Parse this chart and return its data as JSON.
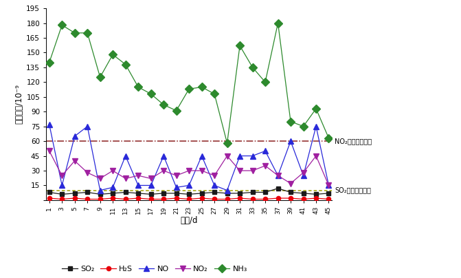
{
  "days": [
    1,
    3,
    5,
    7,
    9,
    11,
    13,
    15,
    17,
    19,
    21,
    23,
    25,
    27,
    29,
    31,
    33,
    35,
    37,
    39,
    41,
    43,
    45
  ],
  "SO2": [
    8,
    6,
    7,
    8,
    6,
    7,
    8,
    7,
    6,
    7,
    7,
    6,
    7,
    8,
    7,
    7,
    8,
    8,
    12,
    8,
    7,
    6,
    7
  ],
  "H2S": [
    2,
    1,
    2,
    1,
    1,
    2,
    1,
    2,
    1,
    1,
    2,
    1,
    2,
    1,
    1,
    2,
    1,
    1,
    2,
    2,
    1,
    2,
    1
  ],
  "NO": [
    77,
    15,
    65,
    75,
    10,
    13,
    45,
    15,
    15,
    45,
    13,
    15,
    45,
    15,
    10,
    45,
    45,
    50,
    25,
    60,
    25,
    75,
    15
  ],
  "NO2": [
    50,
    25,
    40,
    28,
    22,
    30,
    22,
    25,
    22,
    30,
    25,
    30,
    30,
    25,
    45,
    30,
    30,
    35,
    25,
    17,
    28,
    45,
    15
  ],
  "NH3": [
    140,
    178,
    170,
    170,
    125,
    148,
    138,
    115,
    108,
    97,
    91,
    113,
    115,
    108,
    58,
    157,
    135,
    120,
    180,
    80,
    75,
    93,
    63
  ],
  "NO2_avg": 60,
  "SO2_avg": 10,
  "ylim": [
    0,
    195
  ],
  "yticks": [
    0,
    15,
    30,
    45,
    60,
    75,
    90,
    105,
    120,
    135,
    150,
    165,
    180,
    195
  ],
  "ylabel": "体积分数/10⁻⁹",
  "xlabel": "时间/d",
  "SO2_color": "#1a1a1a",
  "H2S_color": "#e8000a",
  "NO_color": "#2929d9",
  "NO2_color": "#a020a0",
  "NH3_color": "#2d8a2d",
  "NO2_avg_color": "#8b2020",
  "SO2_avg_color": "#a0a000",
  "legend_labels": [
    "SO₂",
    "H₂S",
    "NO",
    "NO₂",
    "NH₃"
  ],
  "NO2_label": "NO₂室外月平均値",
  "SO2_label": "SO₂室外月平均値"
}
